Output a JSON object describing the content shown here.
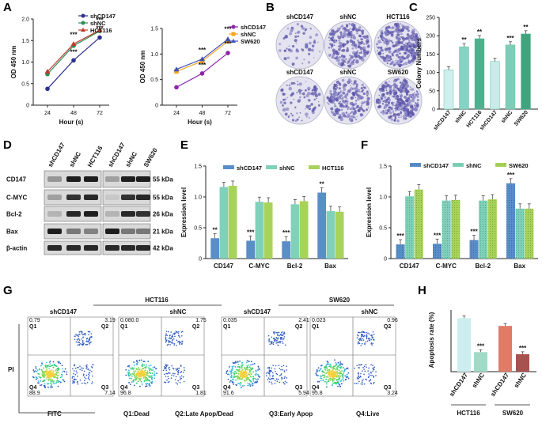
{
  "panel_letters": {
    "A": "A",
    "B": "B",
    "C": "C",
    "D": "D",
    "E": "E",
    "F": "F",
    "G": "G",
    "H": "H"
  },
  "colors": {
    "shCD147": "#2b2f8f",
    "shNC": "#2e8b57",
    "HCT116": "#c0392b",
    "SW620_shCD147": "#8e24aa",
    "SW620_shNC": "#f5a623",
    "SW620": "#3f51b5",
    "E1": "#5a8ec7",
    "E2": "#7fd1b9",
    "E3": "#a8d35a"
  },
  "chart_data": [
    {
      "id": "A1",
      "type": "line",
      "xlabel": "Hour (s)",
      "ylabel": "OD 450 nm",
      "x": [
        24,
        48,
        72
      ],
      "xticks": [
        "24",
        "48",
        "72"
      ],
      "ylim": [
        0,
        2.0
      ],
      "yticks": [
        "0",
        "0.5",
        "1.0",
        "1.5",
        "2.0"
      ],
      "series": [
        {
          "name": "shCD147",
          "values": [
            0.38,
            1.04,
            1.57
          ]
        },
        {
          "name": "shNC",
          "values": [
            0.72,
            1.38,
            1.72
          ]
        },
        {
          "name": "HCT116",
          "values": [
            0.78,
            1.42,
            1.74
          ]
        }
      ],
      "annotations": [
        {
          "x": 48,
          "text": "***"
        },
        {
          "x": 48,
          "text": "***"
        },
        {
          "x": 72,
          "text": "***"
        },
        {
          "x": 72,
          "text": "***"
        }
      ]
    },
    {
      "id": "A2",
      "type": "line",
      "xlabel": "Hour (s)",
      "ylabel": "OD 450 nm",
      "x": [
        24,
        48,
        72
      ],
      "xticks": [
        "24",
        "48",
        "72"
      ],
      "ylim": [
        0,
        1.5
      ],
      "yticks": [
        "0",
        "0.5",
        "1.0",
        "1.5"
      ],
      "series": [
        {
          "name": "shCD147",
          "values": [
            0.35,
            0.62,
            1.02
          ]
        },
        {
          "name": "shNC",
          "values": [
            0.66,
            0.86,
            1.25
          ]
        },
        {
          "name": "SW620",
          "values": [
            0.7,
            0.9,
            1.29
          ]
        }
      ],
      "annotations": [
        {
          "x": 48,
          "text": "***"
        },
        {
          "x": 48,
          "text": "***"
        },
        {
          "x": 72,
          "text": "***"
        },
        {
          "x": 72,
          "text": "***"
        }
      ]
    },
    {
      "id": "C",
      "type": "bar",
      "ylabel": "Colony Numbers",
      "ylim": [
        0,
        250
      ],
      "yticks": [
        "0",
        "50",
        "100",
        "150",
        "200",
        "250"
      ],
      "categories": [
        "shCD147",
        "shNC",
        "HCT116",
        "shCD147",
        "shNC",
        "SW620"
      ],
      "values": [
        107,
        170,
        192,
        130,
        175,
        205
      ],
      "annotations": [
        "",
        "**",
        "**",
        "",
        "***",
        "**"
      ]
    },
    {
      "id": "E",
      "type": "bar",
      "ylabel": "Expression level",
      "ylim": [
        0,
        1.5
      ],
      "yticks": [
        "0",
        "0.5",
        "1.0",
        "1.5"
      ],
      "categories": [
        "CD147",
        "C-MYC",
        "Bcl-2",
        "Bax"
      ],
      "series": [
        {
          "name": "shCD147",
          "values": [
            0.33,
            0.29,
            0.28,
            1.07
          ]
        },
        {
          "name": "shNC",
          "values": [
            1.16,
            0.92,
            0.88,
            0.77
          ]
        },
        {
          "name": "HCT116",
          "values": [
            1.18,
            0.91,
            0.93,
            0.76
          ]
        }
      ],
      "annotations": [
        "**",
        "***",
        "***",
        "**"
      ]
    },
    {
      "id": "F",
      "type": "bar",
      "ylabel": "Expression level",
      "ylim": [
        0,
        1.5
      ],
      "yticks": [
        "0",
        "0.5",
        "1.0",
        "1.5"
      ],
      "categories": [
        "CD147",
        "C-MYC",
        "Bcl-2",
        "Bax"
      ],
      "series": [
        {
          "name": "shCD147",
          "values": [
            0.23,
            0.24,
            0.3,
            1.22
          ]
        },
        {
          "name": "shNC",
          "values": [
            1.01,
            0.94,
            0.94,
            0.81
          ]
        },
        {
          "name": "SW620",
          "values": [
            1.12,
            0.95,
            0.96,
            0.81
          ]
        }
      ],
      "annotations": [
        "***",
        "***",
        "***",
        "***"
      ]
    },
    {
      "id": "H",
      "type": "bar",
      "ylabel": "Apoptosis   rate  (%)",
      "ylim": [
        0,
        12
      ],
      "categories": [
        "shCD147",
        "shNC",
        "shCD147",
        "shNC"
      ],
      "values": [
        10.4,
        3.8,
        8.9,
        3.4
      ],
      "groups": [
        "HCT116",
        "SW620"
      ],
      "annotations": [
        "",
        "***",
        "",
        "***"
      ]
    }
  ],
  "panel_b": {
    "row1": [
      "shCD147",
      "shNC",
      "HCT116"
    ],
    "row2": [
      "shCD147",
      "shNC",
      "SW620"
    ]
  },
  "panel_d": {
    "cols_left": [
      "shCD147",
      "shNC",
      "HCT116"
    ],
    "cols_right": [
      "shCD147",
      "shNC",
      "SW620"
    ],
    "rows": [
      "CD147",
      "C-MYC",
      "Bcl-2",
      "Bax",
      "β-actin"
    ],
    "kda": [
      "55 kDa",
      "55 kDa",
      "26 kDa",
      "21 kDa",
      "42 kDa"
    ]
  },
  "panel_g": {
    "group_left": "HCT116",
    "group_right": "SW620",
    "col_labels": [
      "shCD147",
      "shNC",
      "shCD147",
      "shNC"
    ],
    "quad_labels": [
      "Q1",
      "Q2",
      "Q3",
      "Q4"
    ],
    "values": [
      [
        "0.79",
        "3.19",
        "7.14",
        "88.9"
      ],
      [
        "0.080.0",
        "1.75",
        "1.81",
        "96.8"
      ],
      [
        "0.035",
        "2.41",
        "5.94",
        "91.6"
      ],
      [
        "0.023",
        "0.96",
        "3.24",
        "95.8"
      ]
    ],
    "ylabel": "PI",
    "xlabel": "FITC",
    "legend": [
      "Q1:Dead",
      "Q2:Late Apop/Dead",
      "Q3:Early Apop",
      "Q4:Live"
    ]
  }
}
